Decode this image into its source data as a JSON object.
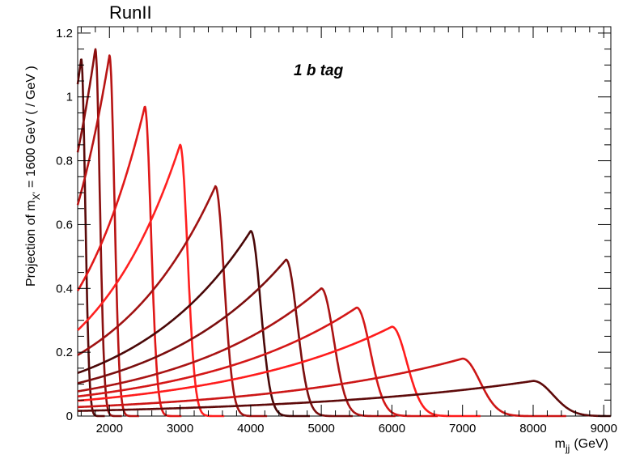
{
  "chart_data": {
    "type": "line",
    "title": "RunII",
    "annotation": "1 b tag",
    "xlabel": {
      "main": "m",
      "sub": "jj",
      "unit": "(GeV)"
    },
    "ylabel": {
      "pre": "Projection of m",
      "sub": "X'",
      "post": "= 1600 GeV ( / GeV )"
    },
    "xlim": [
      1550,
      9100
    ],
    "ylim": [
      0,
      1.22
    ],
    "x_ticks": [
      2000,
      3000,
      4000,
      5000,
      6000,
      7000,
      8000,
      9000
    ],
    "x_tick_labels": [
      "2000",
      "3000",
      "4000",
      "5000",
      "6000",
      "7000",
      "8000",
      "9000"
    ],
    "y_ticks": [
      0,
      0.2,
      0.4,
      0.6,
      0.8,
      1.0,
      1.2
    ],
    "y_tick_labels": [
      "0",
      "0.2",
      "0.4",
      "0.6",
      "0.8",
      "1",
      "1.2"
    ],
    "grid": false,
    "series": [
      {
        "mass": 1600,
        "peak": 1.12,
        "color": "#5a0a0a"
      },
      {
        "mass": 1800,
        "peak": 1.15,
        "color": "#8b1010"
      },
      {
        "mass": 2000,
        "peak": 1.13,
        "color": "#b81414"
      },
      {
        "mass": 2500,
        "peak": 0.97,
        "color": "#e01818"
      },
      {
        "mass": 3000,
        "peak": 0.85,
        "color": "#ff2020"
      },
      {
        "mass": 3500,
        "peak": 0.72,
        "color": "#a01212"
      },
      {
        "mass": 4000,
        "peak": 0.58,
        "color": "#4a0808"
      },
      {
        "mass": 4500,
        "peak": 0.49,
        "color": "#7a0e0e"
      },
      {
        "mass": 5000,
        "peak": 0.4,
        "color": "#aa1313"
      },
      {
        "mass": 5500,
        "peak": 0.34,
        "color": "#d41717"
      },
      {
        "mass": 6000,
        "peak": 0.28,
        "color": "#ff1c1c"
      },
      {
        "mass": 7000,
        "peak": 0.18,
        "color": "#cc1616"
      },
      {
        "mass": 8000,
        "peak": 0.11,
        "color": "#5e0a0a"
      }
    ]
  }
}
